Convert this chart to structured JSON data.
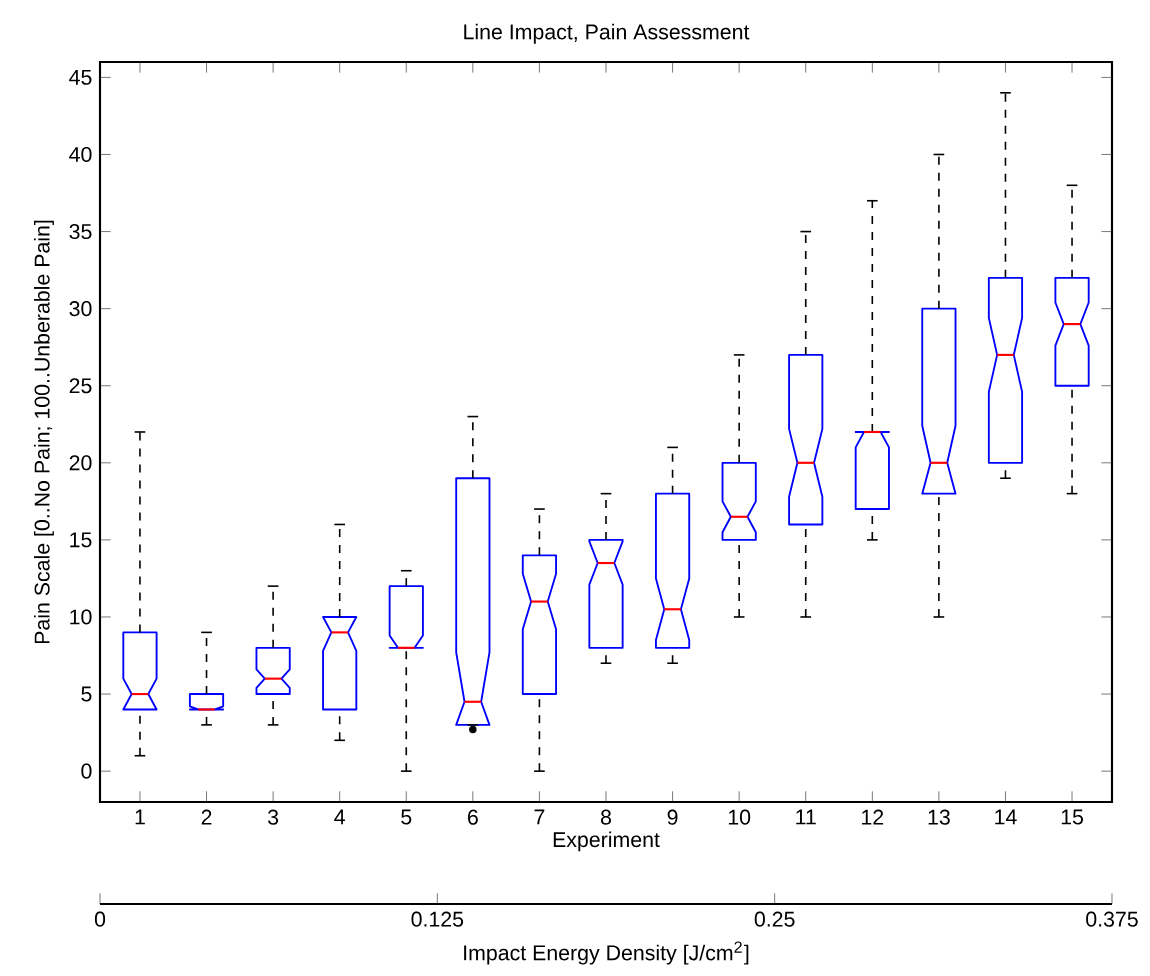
{
  "chart_data": {
    "type": "box",
    "title": "Line Impact, Pain Assessment",
    "xlabel": "Experiment",
    "ylabel": "Pain Scale [0..No Pain; 100..Unberable Pain]",
    "x2label": "Impact Energy Density [J/cm$^{2}$]",
    "categories": [
      "1",
      "2",
      "3",
      "4",
      "5",
      "6",
      "7",
      "8",
      "9",
      "10",
      "11",
      "12",
      "13",
      "14",
      "15"
    ],
    "color": "#0000ff",
    "boxes": [
      {
        "low": 1,
        "q1": 4,
        "median": 5,
        "q3": 9,
        "high": 22
      },
      {
        "low": 3,
        "q1": 4,
        "median": 4,
        "q3": 5,
        "high": 9
      },
      {
        "low": 3,
        "q1": 5,
        "median": 6,
        "q3": 8,
        "high": 12
      },
      {
        "low": 2,
        "q1": 4,
        "median": 9,
        "q3": 10,
        "high": 16
      },
      {
        "low": 0,
        "q1": 8,
        "median": 8,
        "q3": 12,
        "high": 13
      },
      {
        "low": 3,
        "q1": 3,
        "median": 4.5,
        "q3": 19,
        "high": 23,
        "outliers": [
          2.7
        ]
      },
      {
        "low": 0,
        "q1": 5,
        "median": 11,
        "q3": 14,
        "high": 17
      },
      {
        "low": 7,
        "q1": 8,
        "median": 13.5,
        "q3": 15,
        "high": 18
      },
      {
        "low": 7,
        "q1": 8,
        "median": 10.5,
        "q3": 18,
        "high": 21
      },
      {
        "low": 10,
        "q1": 15,
        "median": 16.5,
        "q3": 20,
        "high": 27
      },
      {
        "low": 10,
        "q1": 16,
        "median": 20,
        "q3": 27,
        "high": 35
      },
      {
        "low": 15,
        "q1": 17,
        "median": 22,
        "q3": 22,
        "high": 37
      },
      {
        "low": 10,
        "q1": 18,
        "median": 20,
        "q3": 30,
        "high": 40
      },
      {
        "low": 19,
        "q1": 20,
        "median": 27,
        "q3": 32,
        "high": 44
      },
      {
        "low": 18,
        "q1": 25,
        "median": 29,
        "q3": 32,
        "high": 38
      }
    ],
    "ylim": [
      -2,
      46
    ],
    "yticks": [
      0,
      5,
      10,
      15,
      20,
      25,
      30,
      35,
      40,
      45
    ],
    "x2lim": [
      0,
      0.375
    ],
    "x2ticks": [
      0,
      0.125,
      0.25,
      0.375
    ]
  }
}
